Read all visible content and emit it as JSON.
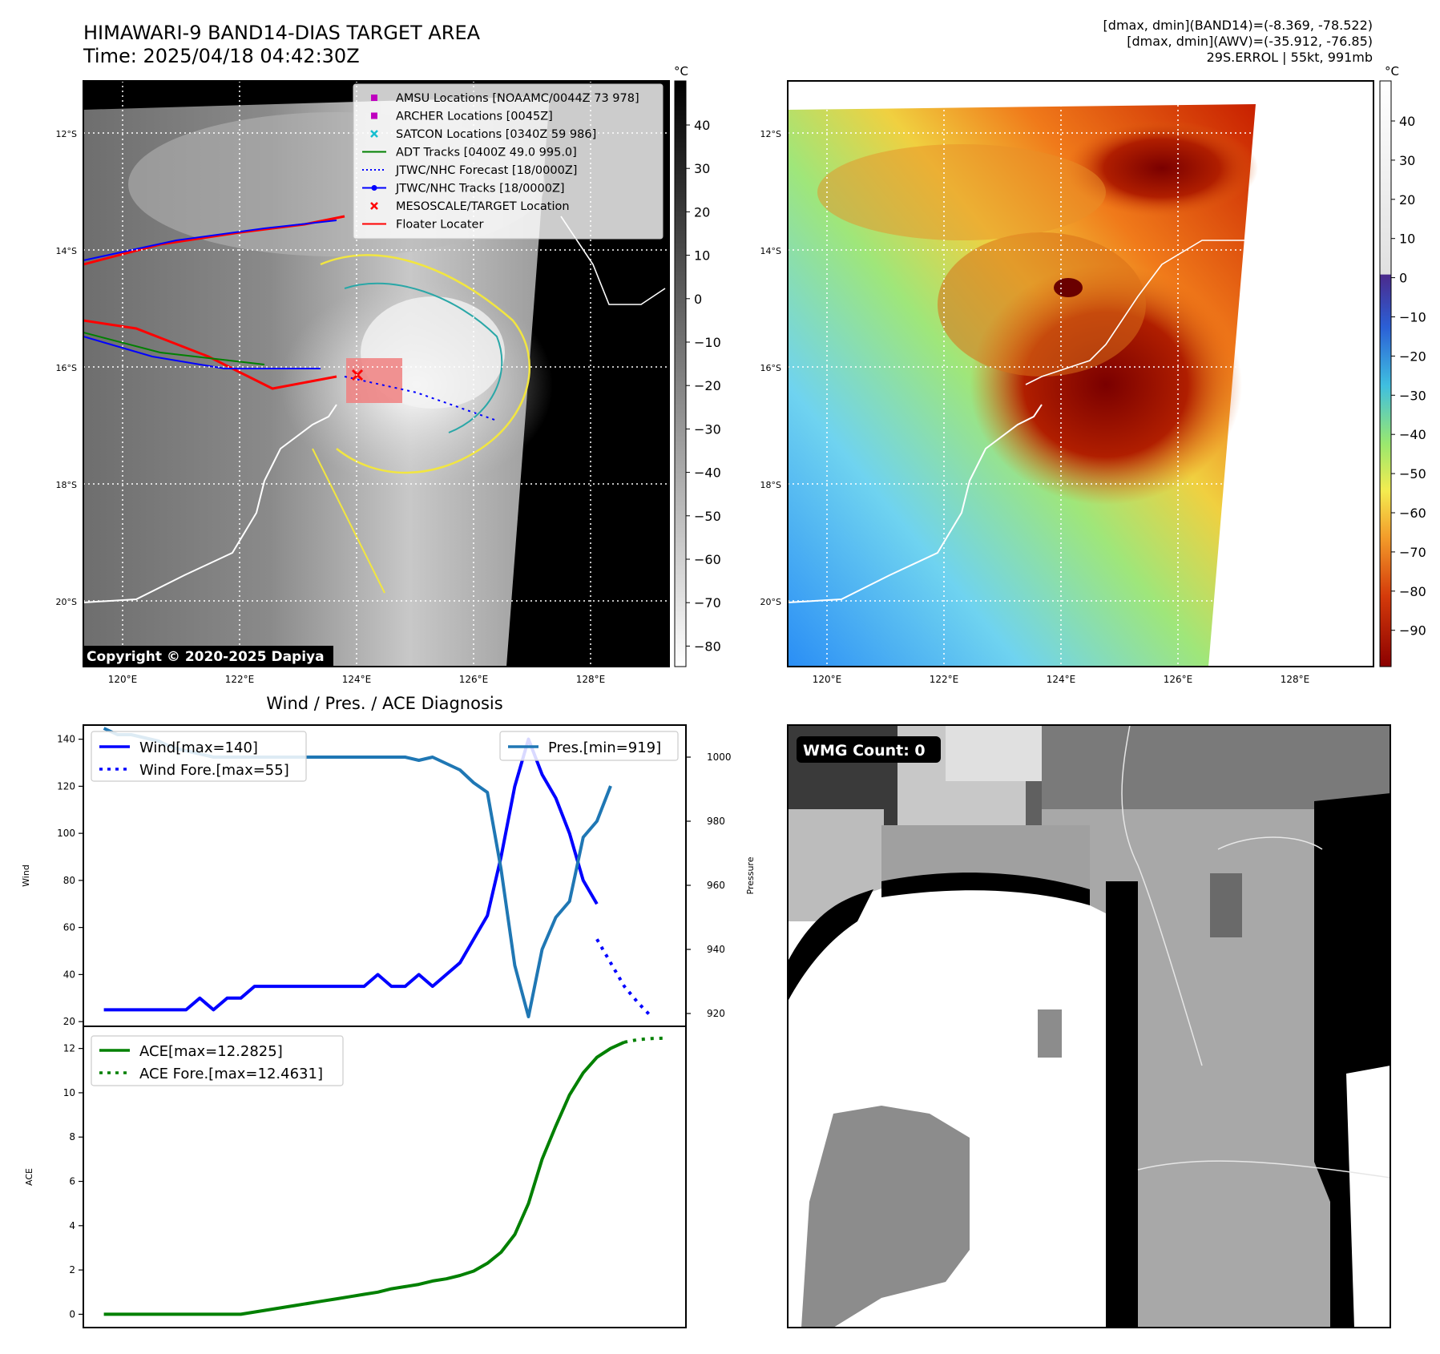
{
  "header": {
    "title_line1": "HIMAWARI-9 BAND14-DIAS TARGET AREA",
    "title_line2": "Time: 2025/04/18 04:42:30Z",
    "info_line1": "[dmax, dmin](BAND14)=(-8.369, -78.522)",
    "info_line2": "[dmax, dmin](AWV)=(-35.912, -76.85)",
    "info_line3": "29S.ERROL | 55kt, 991mb"
  },
  "map": {
    "lat_labels": [
      "12°S",
      "14°S",
      "16°S",
      "18°S",
      "20°S"
    ],
    "lon_labels": [
      "120°E",
      "122°E",
      "124°E",
      "126°E",
      "128°E"
    ],
    "copyright": "Copyright © 2020-2025 Dapiya",
    "legend": [
      {
        "label": "AMSU Locations [NOAAMC/0044Z 73 978]",
        "color": "#bf00bf",
        "marker": "square"
      },
      {
        "label": "ARCHER Locations [0045Z]",
        "color": "#bf00bf",
        "marker": "square"
      },
      {
        "label": "SATCON Locations [0340Z 59 986]",
        "color": "#17becf",
        "marker": "x"
      },
      {
        "label": "ADT Tracks [0400Z 49.0 995.0]",
        "color": "#008000",
        "marker": "line"
      },
      {
        "label": "JTWC/NHC Forecast [18/0000Z]",
        "color": "#0000ff",
        "marker": "dotted"
      },
      {
        "label": "JTWC/NHC Tracks [18/0000Z]",
        "color": "#0000ff",
        "marker": "line-dot"
      },
      {
        "label": "MESOSCALE/TARGET Location",
        "color": "#ff0000",
        "marker": "x"
      },
      {
        "label": "Floater Locater",
        "color": "#ff0000",
        "marker": "line"
      }
    ]
  },
  "colorbar_gray": {
    "unit": "°C",
    "ticks": [
      "40",
      "30",
      "20",
      "10",
      "0",
      "−10",
      "−20",
      "−30",
      "−40",
      "−50",
      "−60",
      "−70",
      "−80"
    ]
  },
  "colorbar_color": {
    "unit": "°C",
    "ticks": [
      "40",
      "30",
      "20",
      "10",
      "0",
      "−10",
      "−20",
      "−30",
      "−40",
      "−50",
      "−60",
      "−70",
      "−80",
      "−90"
    ]
  },
  "wmg": {
    "label": "WMG Count: 0"
  },
  "chart_data": [
    {
      "type": "line",
      "title": "Wind / Pres. / ACE Diagnosis",
      "ylabel": "Wind",
      "ylabel_right": "Pressure",
      "ylim": [
        18,
        146
      ],
      "ylim_right": [
        916,
        1010
      ],
      "y_ticks": [
        20,
        40,
        60,
        80,
        100,
        120,
        140
      ],
      "y_ticks_right": [
        920,
        940,
        960,
        980,
        1000
      ],
      "x_index_range": [
        0,
        39
      ],
      "series": [
        {
          "name": "Wind[max=140]",
          "color": "#0000ff",
          "style": "solid",
          "axis": "left",
          "x": [
            0,
            1,
            2,
            3,
            4,
            5,
            6,
            7,
            8,
            9,
            10,
            11,
            12,
            13,
            14,
            15,
            16,
            17,
            18,
            19,
            20,
            21,
            22,
            23,
            24,
            25,
            26,
            27,
            28,
            29,
            30,
            31,
            32,
            33,
            34,
            35,
            36
          ],
          "values": [
            25,
            25,
            25,
            25,
            25,
            25,
            25,
            30,
            25,
            30,
            30,
            35,
            35,
            35,
            35,
            35,
            35,
            35,
            35,
            35,
            40,
            35,
            35,
            40,
            35,
            40,
            45,
            55,
            65,
            90,
            120,
            140,
            125,
            115,
            100,
            80,
            70
          ]
        },
        {
          "name": "Wind Fore.[max=55]",
          "color": "#0000ff",
          "style": "dotted",
          "axis": "left",
          "x": [
            36,
            37,
            38,
            39,
            40
          ],
          "values": [
            55,
            45,
            35,
            28,
            22
          ]
        },
        {
          "name": "Pres.[min=919]",
          "color": "#1f77b4",
          "style": "solid",
          "axis": "right",
          "x": [
            0,
            1,
            2,
            3,
            4,
            5,
            6,
            7,
            8,
            9,
            10,
            11,
            12,
            13,
            14,
            15,
            16,
            17,
            18,
            19,
            20,
            21,
            22,
            23,
            24,
            25,
            26,
            27,
            28,
            29,
            30,
            31,
            32,
            33,
            34,
            35,
            36,
            37
          ],
          "values": [
            1009,
            1007,
            1007,
            1006,
            1005,
            1003,
            1002,
            1001,
            1000,
            1000,
            1000,
            1000,
            1000,
            1000,
            1000,
            1000,
            1000,
            1000,
            1000,
            1000,
            1000,
            1000,
            1000,
            999,
            1000,
            998,
            996,
            992,
            989,
            965,
            935,
            919,
            940,
            950,
            955,
            975,
            980,
            991
          ]
        }
      ]
    },
    {
      "type": "line",
      "ylabel": "ACE",
      "ylim": [
        -0.6,
        13.0
      ],
      "y_ticks": [
        0,
        2,
        4,
        6,
        8,
        10,
        12
      ],
      "x_index_range": [
        0,
        39
      ],
      "series": [
        {
          "name": "ACE[max=12.2825]",
          "color": "#008000",
          "style": "solid",
          "x": [
            0,
            1,
            2,
            3,
            4,
            5,
            6,
            7,
            8,
            9,
            10,
            11,
            12,
            13,
            14,
            15,
            16,
            17,
            18,
            19,
            20,
            21,
            22,
            23,
            24,
            25,
            26,
            27,
            28,
            29,
            30,
            31,
            32,
            33,
            34,
            35,
            36,
            37,
            38
          ],
          "values": [
            0,
            0,
            0,
            0,
            0,
            0,
            0,
            0,
            0,
            0,
            0,
            0.1,
            0.2,
            0.3,
            0.4,
            0.5,
            0.6,
            0.7,
            0.8,
            0.9,
            1.0,
            1.15,
            1.25,
            1.35,
            1.5,
            1.6,
            1.75,
            1.95,
            2.3,
            2.8,
            3.6,
            5.0,
            7.0,
            8.5,
            9.9,
            10.9,
            11.6,
            12.0,
            12.2825
          ]
        },
        {
          "name": "ACE Fore.[max=12.4631]",
          "color": "#008000",
          "style": "dotted",
          "x": [
            38,
            39,
            40,
            41
          ],
          "values": [
            12.2825,
            12.4,
            12.45,
            12.4631
          ]
        }
      ]
    }
  ]
}
